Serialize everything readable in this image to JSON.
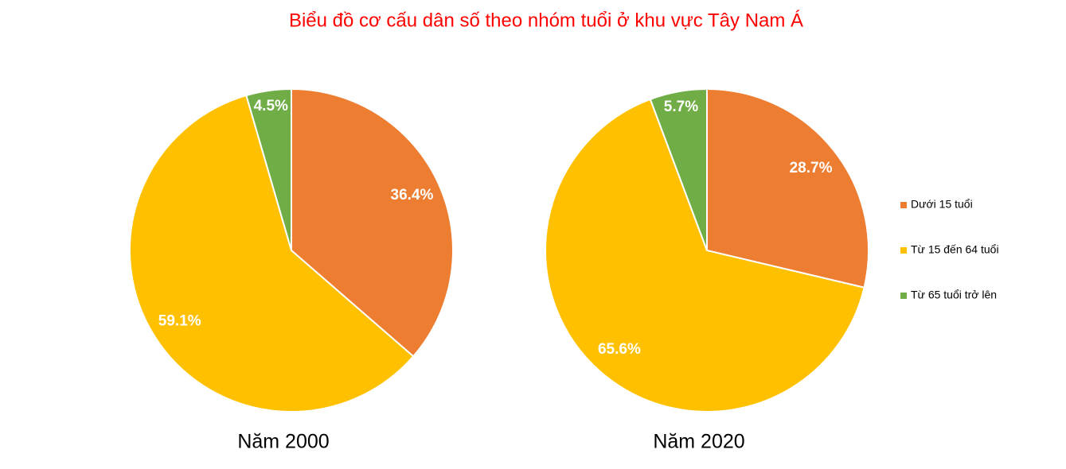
{
  "title": "Biểu đồ cơ cấu dân số theo nhóm tuổi ở khu vực Tây Nam Á",
  "categories": [
    "Dưới 15 tuổi",
    "Từ 15 đến 64 tuổi",
    "Từ 65 tuổi trở lên"
  ],
  "colors": [
    "#ed7d31",
    "#ffc000",
    "#70ad47"
  ],
  "chart_data": [
    {
      "type": "pie",
      "subtitle": "Năm 2000",
      "values": [
        36.4,
        59.1,
        4.5
      ],
      "value_labels": [
        "36.4%",
        "59.1%",
        "4.5%"
      ]
    },
    {
      "type": "pie",
      "subtitle": "Năm 2020",
      "values": [
        28.7,
        65.6,
        5.7
      ],
      "value_labels": [
        "28.7%",
        "65.6%",
        "5.7%"
      ]
    }
  ]
}
